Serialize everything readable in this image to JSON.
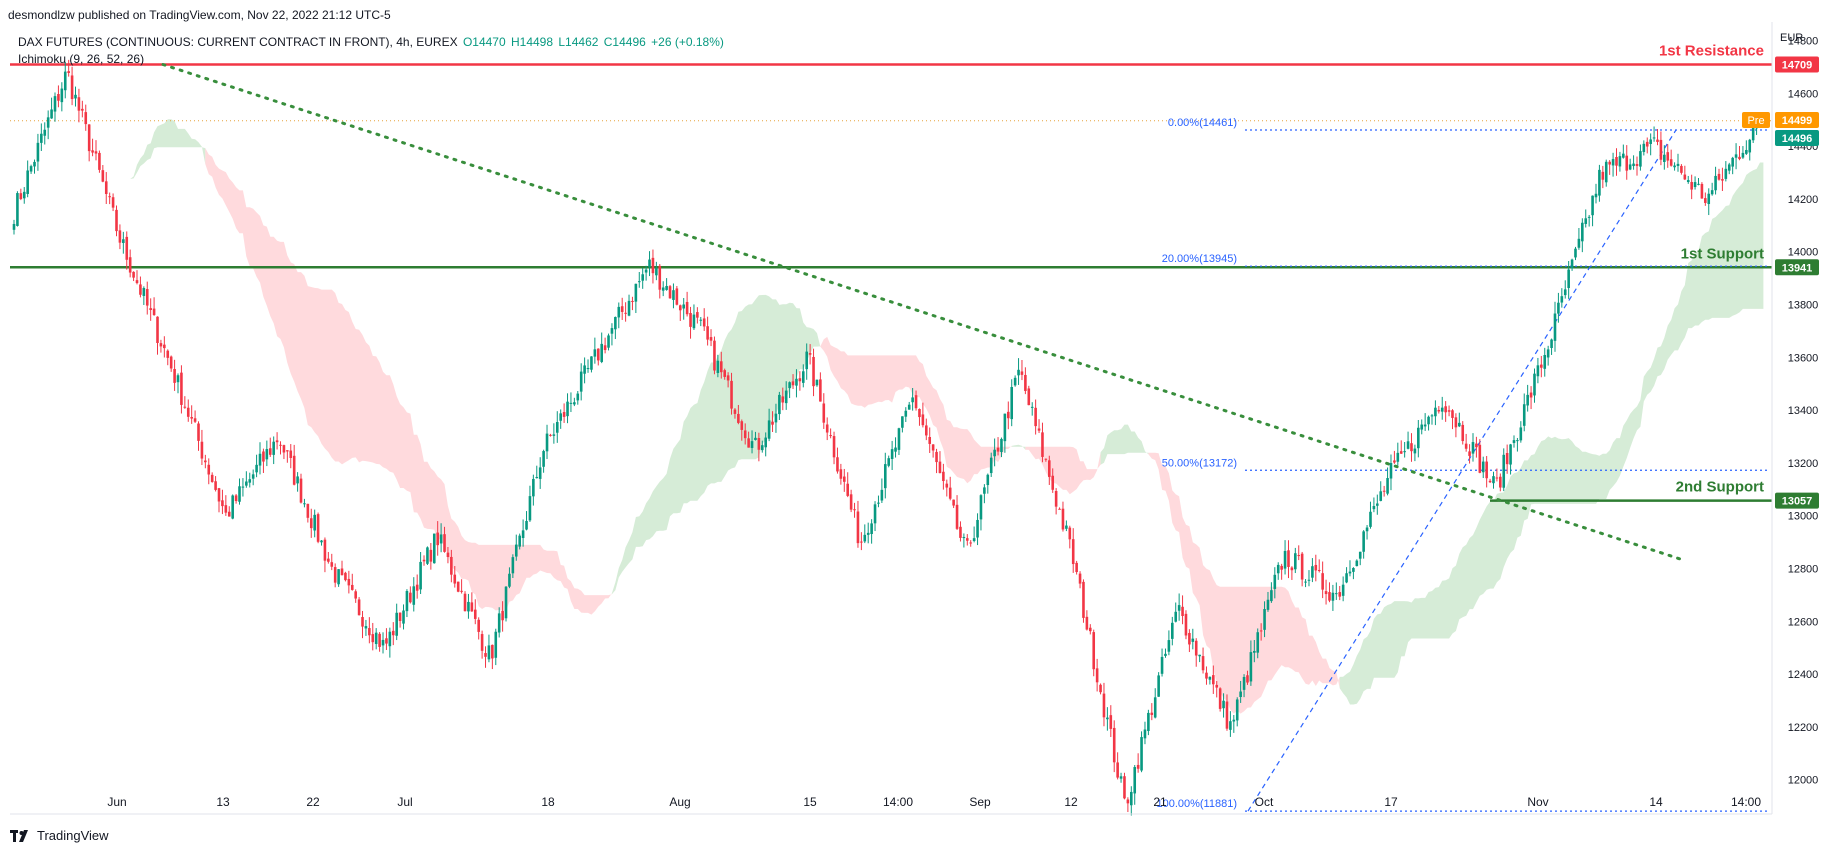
{
  "header": {
    "publisher": "desmondlzw published on TradingView.com, Nov 22, 2022 21:12 UTC-5"
  },
  "legend": {
    "symbol": "DAX FUTURES (CONTINUOUS: CURRENT CONTRACT IN FRONT), 4h, EUREX",
    "open": "O14470",
    "high": "H14498",
    "low": "L14462",
    "close": "C14496",
    "change": "+26 (+0.18%)",
    "indicator": "Ichimoku (9, 26, 52, 26)"
  },
  "footer": {
    "logo_text": "TradingView"
  },
  "axis_currency": "EUR",
  "colors": {
    "up": "#089981",
    "down": "#f23645",
    "resistance": "#f23645",
    "support": "#2e7d32",
    "trendline": "#388e3c",
    "fib": "#2962ff",
    "cloud_bull": "#c8e6c9",
    "cloud_bear": "#ffcdd2",
    "pre_badge": "#ff9800"
  },
  "chart_data": {
    "type": "candlestick",
    "timeframe": "4h",
    "y_ticks": [
      12000,
      12200,
      12400,
      12600,
      12800,
      13000,
      13200,
      13400,
      13600,
      13800,
      14000,
      14200,
      14400,
      14600,
      14800
    ],
    "ylim": [
      11870,
      14870
    ],
    "x_labels": [
      "Jun",
      "13",
      "22",
      "Jul",
      "18",
      "Aug",
      "15",
      "14:00",
      "Sep",
      "12",
      "21",
      "Oct",
      "17",
      "Nov",
      "14",
      "14:00"
    ],
    "key_path": [
      14150,
      14680,
      14050,
      13550,
      13000,
      13300,
      12800,
      12500,
      12920,
      12460,
      13250,
      13600,
      13950,
      13700,
      13250,
      13600,
      12900,
      13450,
      12850,
      13550,
      12850,
      11900,
      12650,
      12200,
      12850,
      12700,
      13150,
      13450,
      13100,
      13650,
      14300,
      14400,
      14200,
      14496
    ],
    "levels": [
      {
        "name": "1st Resistance",
        "value": 14709,
        "label": "14709"
      },
      {
        "name": "1st Support",
        "value": 13941,
        "label": "13941"
      },
      {
        "name": "2nd Support",
        "value": 13057,
        "label": "13057"
      }
    ],
    "price_badges": [
      {
        "tag": "Pre",
        "label": "14499",
        "value": 14499
      },
      {
        "label": "14496",
        "value": 14496
      }
    ],
    "fibonacci": [
      {
        "label": "0.00%(14461)",
        "value": 14461
      },
      {
        "label": "20.00%(13945)",
        "value": 13945
      },
      {
        "label": "50.00%(13172)",
        "value": 13172
      },
      {
        "label": "100.00%(11881)",
        "value": 11881
      }
    ],
    "trendline": {
      "style": "dotted",
      "from": 14709,
      "to": 12830
    },
    "ichimoku": {
      "params": [
        9,
        26,
        52,
        26
      ]
    },
    "grid": false
  }
}
